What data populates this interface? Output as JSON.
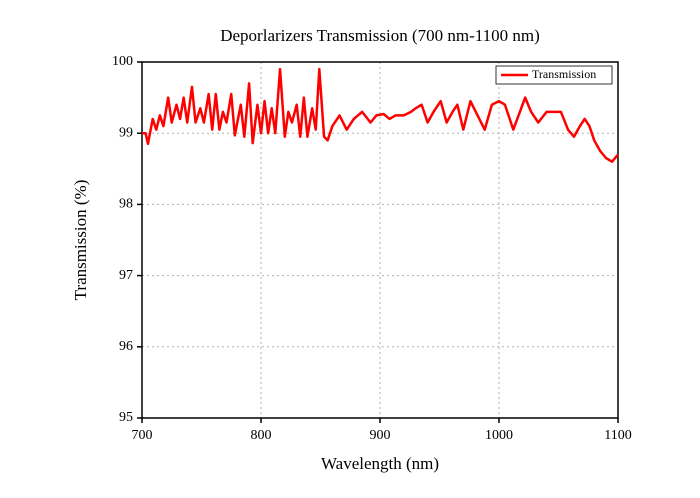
{
  "chart_data": {
    "type": "line",
    "title": "Deporlarizers Transmission (700 nm-1100 nm)",
    "x_label": "Wavelength (nm)",
    "y_label": "Transmission (%)",
    "x": [
      700,
      703,
      705,
      709,
      712,
      715,
      718,
      722,
      725,
      729,
      732,
      735,
      738,
      742,
      745,
      749,
      752,
      756,
      759,
      762,
      765,
      768,
      771,
      775,
      778,
      783,
      786,
      790,
      793,
      797,
      800,
      803,
      806,
      809,
      812,
      816,
      820,
      823,
      826,
      830,
      833,
      836,
      839,
      843,
      846,
      849,
      853,
      856,
      860,
      866,
      872,
      878,
      885,
      892,
      897,
      903,
      908,
      913,
      920,
      926,
      930,
      935,
      940,
      945,
      951,
      956,
      961,
      965,
      970,
      976,
      982,
      988,
      994,
      1000,
      1005,
      1012,
      1022,
      1027,
      1033,
      1040,
      1046,
      1052,
      1058,
      1063,
      1068,
      1072,
      1076,
      1080,
      1085,
      1090,
      1095,
      1100
    ],
    "series": [
      {
        "name": "Transmission",
        "color": "#ff0000",
        "values": [
          99.0,
          99.0,
          98.85,
          99.2,
          99.05,
          99.25,
          99.1,
          99.5,
          99.15,
          99.4,
          99.2,
          99.5,
          99.15,
          99.65,
          99.15,
          99.35,
          99.15,
          99.55,
          99.05,
          99.55,
          99.05,
          99.3,
          99.15,
          99.55,
          98.97,
          99.4,
          98.95,
          99.7,
          98.86,
          99.4,
          99.0,
          99.45,
          99.0,
          99.35,
          99.0,
          99.9,
          98.95,
          99.3,
          99.15,
          99.4,
          98.95,
          99.5,
          98.95,
          99.35,
          99.05,
          99.9,
          98.95,
          98.9,
          99.1,
          99.25,
          99.05,
          99.2,
          99.3,
          99.15,
          99.25,
          99.27,
          99.2,
          99.25,
          99.25,
          99.3,
          99.35,
          99.4,
          99.15,
          99.3,
          99.45,
          99.15,
          99.3,
          99.4,
          99.05,
          99.45,
          99.25,
          99.05,
          99.4,
          99.45,
          99.4,
          99.05,
          99.5,
          99.3,
          99.15,
          99.3,
          99.3,
          99.3,
          99.05,
          98.95,
          99.1,
          99.2,
          99.1,
          98.9,
          98.75,
          98.65,
          98.6,
          98.7
        ]
      }
    ],
    "xlim": [
      700,
      1100
    ],
    "xticks": [
      700,
      800,
      900,
      1000,
      1100
    ],
    "ylim": [
      95,
      100
    ],
    "yticks": [
      95,
      96,
      97,
      98,
      99,
      100
    ],
    "grid": true,
    "legend": "upper-right"
  }
}
